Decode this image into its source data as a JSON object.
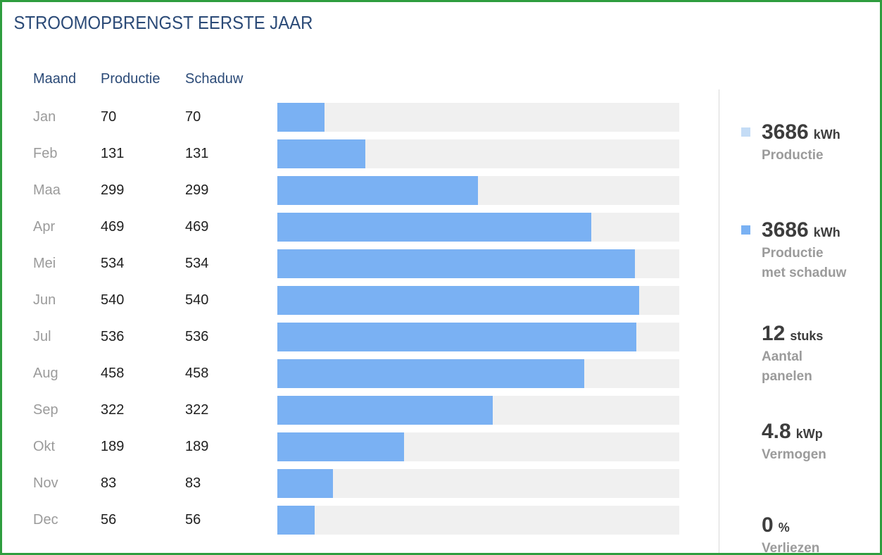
{
  "title": "STROOMOPBRENGST EERSTE JAAR",
  "table": {
    "headers": {
      "month": "Maand",
      "productie": "Productie",
      "schaduw": "Schaduw"
    }
  },
  "chart_data": {
    "type": "bar",
    "orientation": "horizontal",
    "title": "STROOMOPBRENGST EERSTE JAAR",
    "categories": [
      "Jan",
      "Feb",
      "Maa",
      "Apr",
      "Mei",
      "Jun",
      "Jul",
      "Aug",
      "Sep",
      "Okt",
      "Nov",
      "Dec"
    ],
    "series": [
      {
        "name": "Productie",
        "values": [
          70,
          131,
          299,
          469,
          534,
          540,
          536,
          458,
          322,
          189,
          83,
          56
        ]
      },
      {
        "name": "Schaduw",
        "values": [
          70,
          131,
          299,
          469,
          534,
          540,
          536,
          458,
          322,
          189,
          83,
          56
        ]
      }
    ],
    "xlim": [
      0,
      600
    ],
    "grid": false,
    "bar_color": "#7ab1f3",
    "track_color": "#f0f0f0"
  },
  "stats": [
    {
      "value": "3686",
      "unit": "kWh",
      "label": "Productie",
      "swatch": "#c4dcf6"
    },
    {
      "value": "3686",
      "unit": "kWh",
      "label": "Productie met schaduw",
      "swatch": "#7ab1f3"
    },
    {
      "value": "12",
      "unit": "stuks",
      "label": "Aantal panelen",
      "swatch": null
    },
    {
      "value": "4.8",
      "unit": "kWp",
      "label": "Vermogen",
      "swatch": null
    },
    {
      "value": "0",
      "unit": "%",
      "label": "Verliezen",
      "swatch": null
    }
  ],
  "colors": {
    "frame_border": "#2e9d3e",
    "heading_text": "#2b4a77",
    "muted_text": "#9b9b9b",
    "value_text": "#1f1f1f",
    "stat_text": "#3d3d3d",
    "divider": "#d9d9d9",
    "bar": "#7ab1f3",
    "bar_track": "#f0f0f0",
    "legend_light": "#c4dcf6"
  }
}
